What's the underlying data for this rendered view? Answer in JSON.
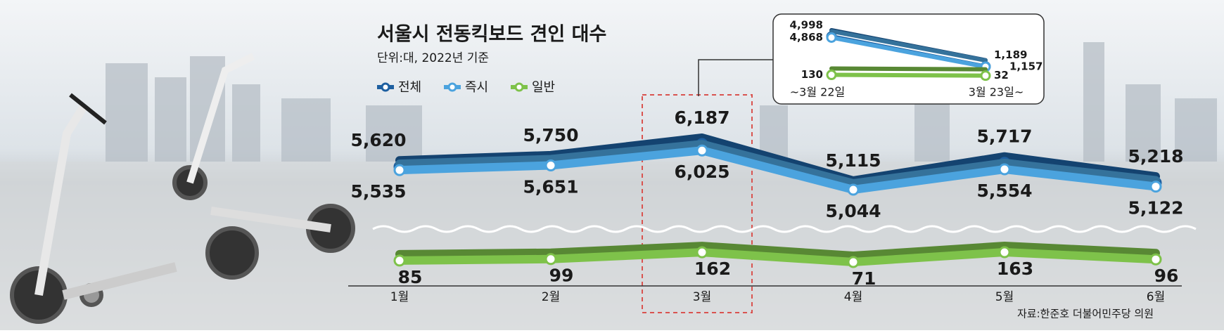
{
  "chart_data": [
    {
      "type": "line",
      "title": "서울시 전동킥보드 견인 대수",
      "subtitle": "단위:대, 2022년 기준",
      "categories": [
        "1월",
        "2월",
        "3월",
        "4월",
        "5월",
        "6월"
      ],
      "series": [
        {
          "name": "전체",
          "color": "#1d5fa0",
          "values": [
            5620,
            5750,
            6187,
            5115,
            5717,
            5218
          ],
          "value_labels": [
            "5,620",
            "5,750",
            "6,187",
            "5,115",
            "5,717",
            "5,218"
          ]
        },
        {
          "name": "즉시",
          "color": "#4ba3de",
          "values": [
            5535,
            5651,
            6025,
            5044,
            5554,
            5122
          ],
          "value_labels": [
            "5,535",
            "5,651",
            "6,025",
            "5,044",
            "5,554",
            "5,122"
          ]
        },
        {
          "name": "일반",
          "color": "#7ec24a",
          "values": [
            85,
            99,
            162,
            71,
            163,
            96
          ]
        }
      ],
      "legend": "top-left",
      "source": "자료:한준호 더불어민주당 의원"
    },
    {
      "type": "line",
      "categories": [
        "~3월 22일",
        "3월 23일~"
      ],
      "series": [
        {
          "color": "#1d5fa0",
          "values": [
            4998,
            1189
          ],
          "value_labels": [
            "4,998",
            "1,189"
          ]
        },
        {
          "color": "#4ba3de",
          "values": [
            4868,
            1157
          ],
          "value_labels": [
            "4,868",
            "1,157"
          ]
        },
        {
          "color": "#7ec24a",
          "values": [
            130,
            32
          ]
        }
      ]
    }
  ]
}
